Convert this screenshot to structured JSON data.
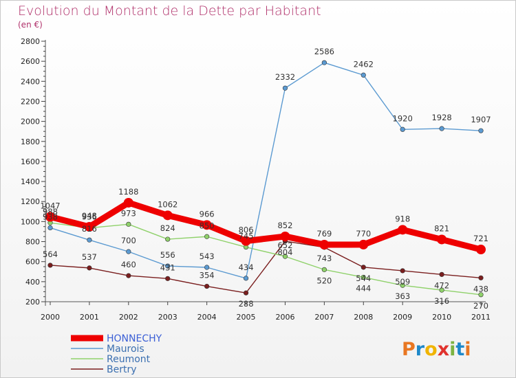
{
  "chart_data": {
    "type": "line",
    "title": "Evolution du Montant de la Dette par Habitant",
    "subtitle": "(en €)",
    "xlabel": "",
    "ylabel": "",
    "categories": [
      "2000",
      "2001",
      "2002",
      "2003",
      "2004",
      "2005",
      "2006",
      "2007",
      "2008",
      "2009",
      "2010",
      "2011"
    ],
    "ylim": [
      200,
      2800
    ],
    "yticks": [
      200,
      400,
      600,
      800,
      1000,
      1200,
      1400,
      1600,
      1800,
      2000,
      2200,
      2400,
      2600,
      2800
    ],
    "grid": false,
    "legend": "bottom-left",
    "series": [
      {
        "name": "Bertry",
        "color": "#7a1e1e",
        "values": [
          564,
          537,
          460,
          431,
          354,
          288,
          804,
          743,
          544,
          509,
          472,
          438
        ]
      },
      {
        "name": "Reumont",
        "color": "#8fd16a",
        "values": [
          988,
          936,
          973,
          824,
          850,
          745,
          652,
          520,
          444,
          363,
          316,
          270
        ]
      },
      {
        "name": "Maurois",
        "color": "#5b9ad1",
        "values": [
          938,
          816,
          700,
          556,
          543,
          434,
          2332,
          2586,
          2462,
          1920,
          1928,
          1907
        ]
      },
      {
        "name": "HONNECHY",
        "color": "#ee0000",
        "values": [
          1047,
          948,
          1188,
          1062,
          966,
          806,
          852,
          769,
          770,
          918,
          821,
          721
        ]
      }
    ],
    "legend_order": [
      "HONNECHY",
      "Maurois",
      "Reumont",
      "Bertry"
    ]
  },
  "brand": {
    "text": "Proxiti",
    "letters": [
      "P",
      "r",
      "o",
      "x",
      "i",
      "t",
      "i"
    ],
    "colors": [
      "#e87722",
      "#1e88c9",
      "#f0b400",
      "#e0322d",
      "#7cb342",
      "#1e88c9",
      "#e87722"
    ]
  }
}
